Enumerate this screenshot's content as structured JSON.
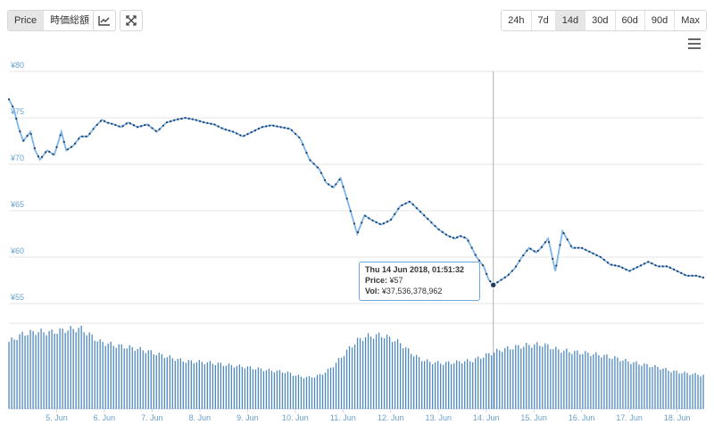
{
  "toolbar": {
    "mode_buttons": [
      "Price",
      "時価総額"
    ],
    "active_mode": "Price",
    "range_buttons": [
      "24h",
      "7d",
      "14d",
      "30d",
      "60d",
      "90d",
      "Max"
    ],
    "active_range": "14d",
    "icons": [
      "line-chart-icon",
      "expand-icon",
      "menu-icon"
    ]
  },
  "colors": {
    "line": "#7cb5ec",
    "point": "#1f3b5c",
    "volume": "#2f73b4",
    "grid": "#e6e6e6",
    "axis_text": "#68a2cf"
  },
  "tooltip": {
    "title": "Thu 14 Jun 2018, 01:51:32",
    "price_label": "Price:",
    "price_value": "¥57",
    "vol_label": "Vol:",
    "vol_value": "¥37,536,378,962"
  },
  "chart_data": {
    "type": "line",
    "y_ticks": [
      "¥80",
      "¥75",
      "¥70",
      "¥65",
      "¥60",
      "¥55"
    ],
    "y_tick_values": [
      80,
      75,
      70,
      65,
      60,
      55
    ],
    "ylim": [
      55,
      80
    ],
    "x_labels": [
      "5. Jun",
      "6. Jun",
      "7. Jun",
      "8. Jun",
      "9. Jun",
      "10. Jun",
      "11. Jun",
      "12. Jun",
      "13. Jun",
      "14. Jun",
      "15. Jun",
      "16. Jun",
      "17. Jun",
      "18. Jun"
    ],
    "x_range": [
      4.0,
      18.55
    ],
    "price": {
      "x": [
        4.0,
        4.1,
        4.2,
        4.3,
        4.45,
        4.55,
        4.65,
        4.8,
        4.95,
        5.1,
        5.2,
        5.35,
        5.5,
        5.65,
        5.8,
        5.95,
        6.05,
        6.2,
        6.35,
        6.5,
        6.7,
        6.9,
        7.1,
        7.3,
        7.5,
        7.7,
        7.9,
        8.1,
        8.3,
        8.5,
        8.7,
        8.9,
        9.1,
        9.3,
        9.5,
        9.7,
        9.9,
        10.1,
        10.3,
        10.5,
        10.65,
        10.8,
        10.95,
        11.1,
        11.3,
        11.45,
        11.6,
        11.8,
        12.0,
        12.2,
        12.4,
        12.6,
        12.8,
        13.0,
        13.2,
        13.35,
        13.45,
        13.6,
        13.8,
        13.95,
        14.05,
        14.15,
        14.3,
        14.45,
        14.6,
        14.75,
        14.9,
        15.05,
        15.15,
        15.3,
        15.45,
        15.6,
        15.8,
        16.0,
        16.2,
        16.4,
        16.6,
        16.8,
        17.0,
        17.2,
        17.4,
        17.6,
        17.8,
        18.0,
        18.2,
        18.4,
        18.55
      ],
      "y": [
        77.0,
        76.0,
        74.0,
        72.5,
        73.5,
        71.5,
        70.5,
        71.5,
        71.0,
        73.5,
        71.5,
        72.0,
        73.0,
        73.0,
        74.0,
        74.8,
        74.5,
        74.3,
        74.0,
        74.5,
        74.0,
        74.3,
        73.5,
        74.5,
        74.8,
        75.0,
        74.8,
        74.5,
        74.3,
        73.8,
        73.5,
        73.0,
        73.5,
        74.0,
        74.2,
        74.0,
        73.8,
        72.8,
        70.5,
        69.5,
        68.0,
        67.5,
        68.5,
        66.0,
        62.5,
        64.5,
        64.0,
        63.5,
        64.0,
        65.5,
        66.0,
        65.0,
        64.0,
        63.0,
        62.3,
        62.0,
        62.3,
        62.0,
        60.0,
        59.0,
        57.6,
        57.0,
        57.5,
        58.0,
        58.8,
        60.0,
        61.0,
        60.5,
        61.0,
        62.0,
        58.5,
        62.8,
        61.0,
        61.0,
        60.5,
        60.0,
        59.2,
        59.0,
        58.5,
        59.0,
        59.5,
        59.0,
        59.0,
        58.5,
        58.0,
        58.0,
        57.8
      ]
    },
    "volume": {
      "x": [
        4.0,
        4.3,
        4.6,
        4.9,
        5.2,
        5.5,
        5.7,
        5.9,
        6.2,
        6.5,
        6.8,
        7.1,
        7.4,
        7.7,
        8.0,
        8.3,
        8.6,
        8.9,
        9.2,
        9.5,
        9.8,
        10.1,
        10.3,
        10.5,
        10.7,
        10.9,
        11.1,
        11.3,
        11.5,
        11.8,
        12.0,
        12.2,
        12.4,
        12.6,
        12.8,
        13.1,
        13.4,
        13.7,
        14.0,
        14.3,
        14.6,
        14.9,
        15.2,
        15.5,
        15.8,
        16.1,
        16.4,
        16.7,
        17.0,
        17.3,
        17.6,
        17.9,
        18.2,
        18.55
      ],
      "y": [
        1.0,
        1.12,
        1.15,
        1.14,
        1.18,
        1.2,
        1.1,
        1.0,
        0.95,
        0.92,
        0.88,
        0.82,
        0.76,
        0.71,
        0.7,
        0.68,
        0.65,
        0.63,
        0.6,
        0.57,
        0.55,
        0.48,
        0.47,
        0.5,
        0.58,
        0.72,
        0.88,
        1.02,
        1.08,
        1.1,
        1.05,
        0.98,
        0.85,
        0.75,
        0.7,
        0.68,
        0.7,
        0.72,
        0.8,
        0.88,
        0.92,
        0.95,
        0.96,
        0.88,
        0.85,
        0.83,
        0.8,
        0.76,
        0.7,
        0.66,
        0.62,
        0.56,
        0.53,
        0.5
      ]
    }
  }
}
